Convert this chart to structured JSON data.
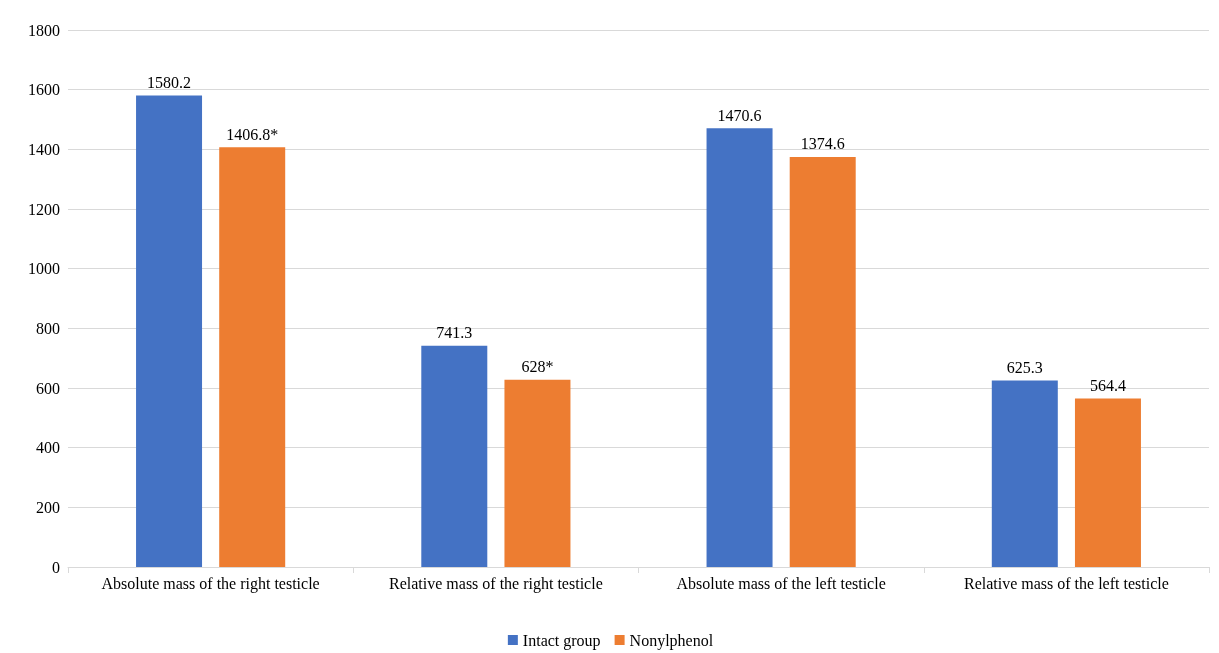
{
  "chart_data": {
    "type": "bar",
    "categories": [
      "Absolute mass of the right testicle",
      "Relative mass of the right testicle",
      "Absolute mass of the left testicle",
      "Relative mass of the left testicle"
    ],
    "series": [
      {
        "name": "Intact group",
        "color": "#4472c4",
        "values": [
          1580.2,
          741.3,
          1470.6,
          625.3
        ],
        "value_labels": [
          "1580.2",
          "741.3",
          "1470.6",
          "625.3"
        ]
      },
      {
        "name": "Nonylphenol",
        "color": "#ed7d31",
        "values": [
          1406.8,
          628,
          1374.6,
          564.4
        ],
        "value_labels": [
          "1406.8*",
          "628*",
          "1374.6",
          "564.4"
        ]
      }
    ],
    "ylim": [
      0,
      1800
    ],
    "yticks": [
      0,
      200,
      400,
      600,
      800,
      1000,
      1200,
      1400,
      1600,
      1800
    ],
    "grid": "y",
    "legend": "bottom"
  }
}
